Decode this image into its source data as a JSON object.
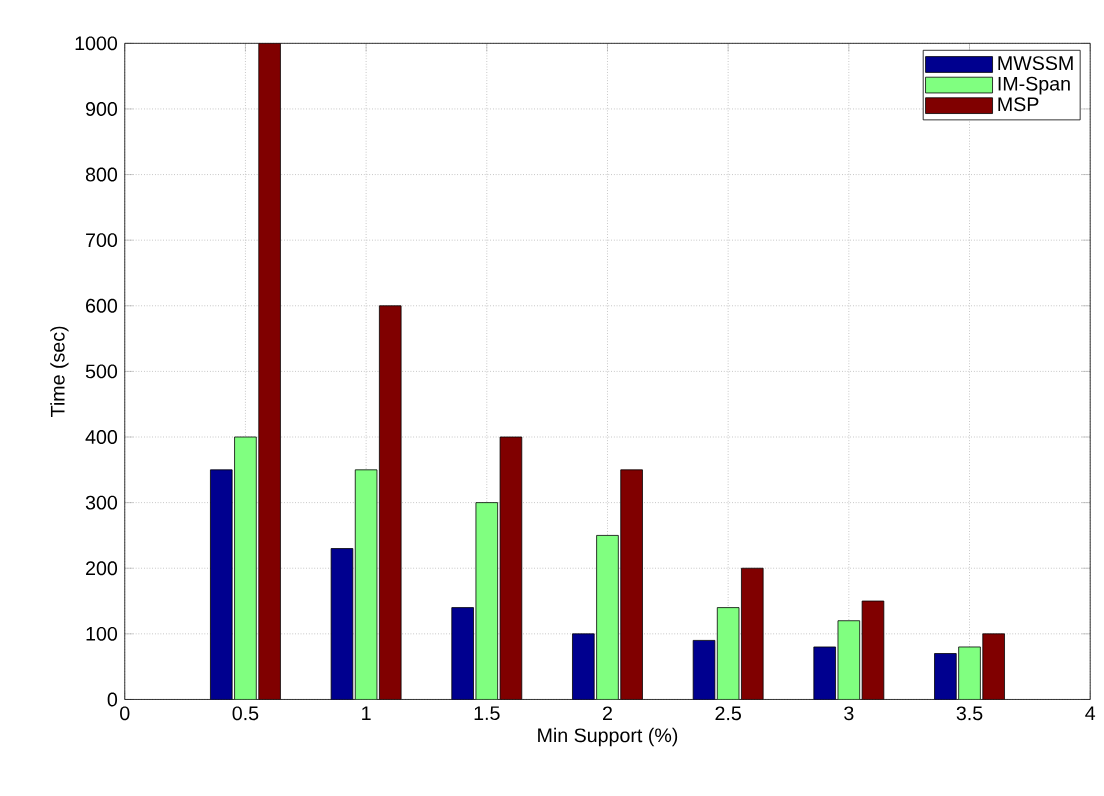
{
  "chart_data": {
    "type": "bar",
    "xlabel": "Min Support (%)",
    "ylabel": "Time (sec)",
    "x": [
      0.5,
      1,
      1.5,
      2,
      2.5,
      3,
      3.5
    ],
    "series": [
      {
        "name": "MWSSM",
        "color": "#00008f",
        "values": [
          350,
          230,
          140,
          100,
          90,
          80,
          70
        ]
      },
      {
        "name": "IM-Span",
        "color": "#80ff80",
        "values": [
          400,
          350,
          300,
          250,
          140,
          120,
          80
        ]
      },
      {
        "name": "MSP",
        "color": "#800000",
        "values": [
          1000,
          600,
          400,
          350,
          200,
          150,
          100
        ]
      }
    ],
    "xlim": [
      0,
      4
    ],
    "ylim": [
      0,
      1000
    ],
    "xticks": [
      0,
      0.5,
      1,
      1.5,
      2,
      2.5,
      3,
      3.5,
      4
    ],
    "yticks": [
      0,
      100,
      200,
      300,
      400,
      500,
      600,
      700,
      800,
      900,
      1000
    ],
    "grid": true,
    "legend": "top right"
  }
}
